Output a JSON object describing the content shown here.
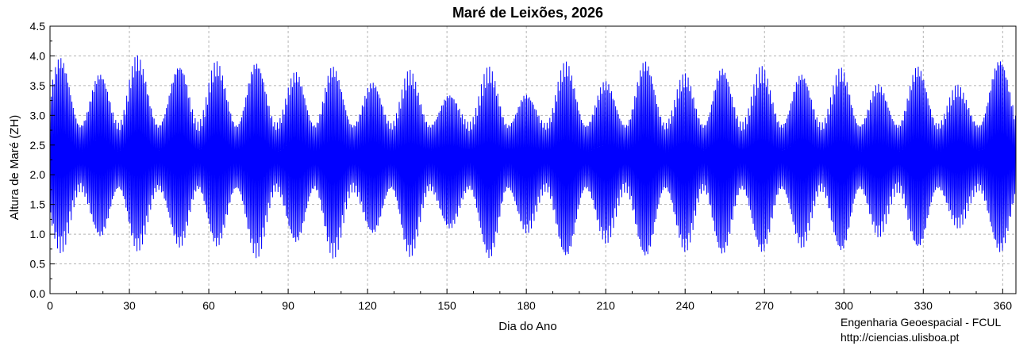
{
  "chart_data": {
    "type": "line",
    "title": "Maré de Leixões, 2026",
    "xlabel": "Dia do Ano",
    "ylabel": "Altura de Maré (ZH)",
    "xlim": [
      0,
      365
    ],
    "ylim": [
      0,
      4.5
    ],
    "xticks": [
      "0",
      "30",
      "60",
      "90",
      "120",
      "150",
      "180",
      "210",
      "240",
      "270",
      "300",
      "330",
      "360"
    ],
    "yticks": [
      "0.0",
      "0.5",
      "1.0",
      "1.5",
      "2.0",
      "2.5",
      "3.0",
      "3.5",
      "4.0",
      "4.5"
    ],
    "grid": true,
    "series_color": "#0000ff",
    "mean_level": 2.3,
    "neap_range": [
      1.75,
      2.85
    ],
    "spring_tides": {
      "day": [
        4,
        19,
        33,
        49,
        63,
        78,
        93,
        107,
        122,
        136,
        151,
        166,
        180,
        195,
        210,
        225,
        240,
        254,
        269,
        284,
        299,
        313,
        328,
        343,
        359
      ],
      "max": [
        4.0,
        3.75,
        4.0,
        3.9,
        3.9,
        3.95,
        3.75,
        3.85,
        3.6,
        3.75,
        3.4,
        3.8,
        3.4,
        3.9,
        3.6,
        3.95,
        3.7,
        3.85,
        3.8,
        3.75,
        3.8,
        3.55,
        3.85,
        3.5,
        4.0
      ],
      "min": [
        0.7,
        0.9,
        0.7,
        0.75,
        0.75,
        0.6,
        0.8,
        0.6,
        0.95,
        0.6,
        1.05,
        0.55,
        1.0,
        0.55,
        0.85,
        0.55,
        0.7,
        0.6,
        0.65,
        0.75,
        0.65,
        0.95,
        0.7,
        1.1,
        0.65
      ]
    }
  },
  "credits": {
    "line1": "Engenharia Geoespacial - FCUL",
    "line2": "http://ciencias.ulisboa.pt"
  }
}
